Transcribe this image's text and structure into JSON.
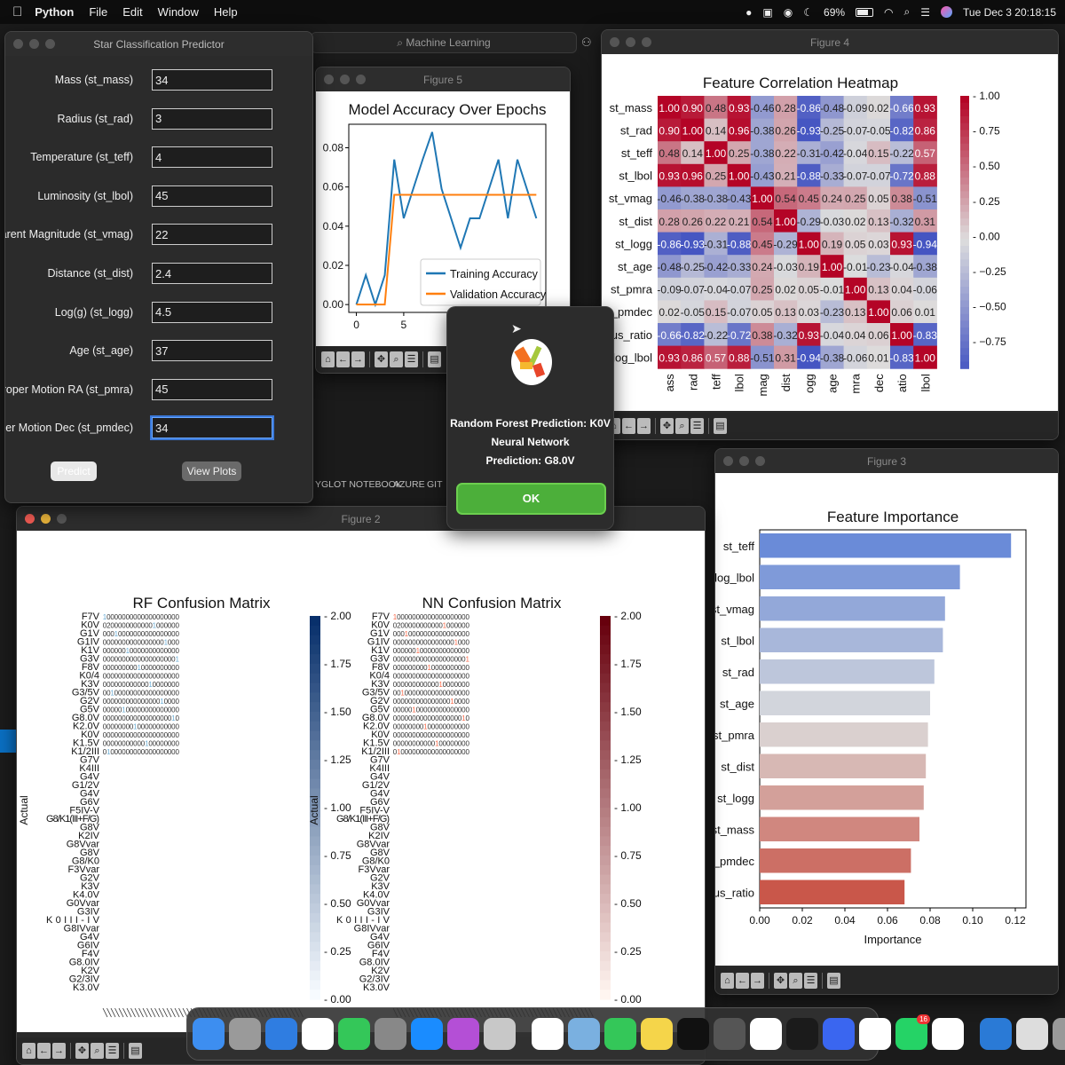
{
  "menubar": {
    "app": "Python",
    "items": [
      "File",
      "Edit",
      "Window",
      "Help"
    ],
    "battery": "69%",
    "clock": "Tue Dec 3  20:18:15"
  },
  "background": {
    "search": "Machine Learning",
    "panel_tabs": [
      "YGLOT NOTEBOOK",
      "AZURE",
      "GIT"
    ]
  },
  "predictor": {
    "title": "Star Classification Predictor",
    "fields": [
      {
        "label": "Mass (st_mass)",
        "value": "34"
      },
      {
        "label": "Radius (st_rad)",
        "value": "3"
      },
      {
        "label": "Temperature (st_teff)",
        "value": "4"
      },
      {
        "label": "Luminosity (st_lbol)",
        "value": "45"
      },
      {
        "label": "Apparent Magnitude (st_vmag)",
        "value": "22"
      },
      {
        "label": "Distance (st_dist)",
        "value": "2.4"
      },
      {
        "label": "Log(g) (st_logg)",
        "value": "4.5"
      },
      {
        "label": "Age (st_age)",
        "value": "37"
      },
      {
        "label": "Proper Motion RA (st_pmra)",
        "value": "45"
      },
      {
        "label": "Proper Motion Dec (st_pmdec)",
        "value": "34"
      }
    ],
    "predict_label": "Predict",
    "view_plots_label": "View Plots"
  },
  "dialog": {
    "line1": "Random Forest Prediction: K0V",
    "line2": "Neural Network",
    "line3": "Prediction: G8.0V",
    "ok_label": "OK",
    "accent": "#4caf3a"
  },
  "figure5": {
    "title": "Figure 5"
  },
  "figure4": {
    "title": "Figure 4"
  },
  "figure3": {
    "title": "Figure 3"
  },
  "figure2": {
    "title": "Figure 2"
  },
  "chart_data": [
    {
      "type": "line",
      "title": "Model Accuracy Over Epochs",
      "x": [
        0,
        1,
        2,
        3,
        4,
        5,
        6,
        7,
        8,
        9,
        10,
        11,
        12,
        13,
        14,
        15,
        16,
        17,
        18,
        19
      ],
      "xticks": [
        0,
        5
      ],
      "yticks": [
        "0.00",
        "0.02",
        "0.04",
        "0.06",
        "0.08"
      ],
      "ylim": [
        -0.004,
        0.092
      ],
      "xlim": [
        -0.8,
        20
      ],
      "series": [
        {
          "name": "Training Accuracy",
          "color": "#1f77b4",
          "values": [
            0,
            0.015,
            0,
            0.015,
            0.074,
            0.044,
            0.059,
            0.074,
            0.088,
            0.059,
            0.044,
            0.029,
            0.044,
            0.044,
            0.059,
            0.074,
            0.044,
            0.074,
            0.059,
            0.044
          ]
        },
        {
          "name": "Validation Accuracy",
          "color": "#ff7f0e",
          "values": [
            0,
            0,
            0,
            0,
            0.056,
            0.056,
            0.056,
            0.056,
            0.056,
            0.056,
            0.056,
            0.056,
            0.056,
            0.056,
            0.056,
            0.056,
            0.056,
            0.056,
            0.056,
            0.056
          ]
        }
      ],
      "legend": "lower-right"
    },
    {
      "type": "heatmap",
      "title": "Feature Correlation Heatmap",
      "colormap": "coolwarm",
      "labels": [
        "st_mass",
        "st_rad",
        "st_teff",
        "st_lbol",
        "st_vmag",
        "st_dist",
        "st_logg",
        "st_age",
        "st_pmra",
        "st_pmdec",
        "us_ratio",
        "log_lbol"
      ],
      "xlabels_visible": [
        "ass",
        "rad",
        "teff",
        "lbol",
        "mag",
        "dist",
        "ogg",
        "age",
        "mra",
        "dec",
        "atio",
        "lbol"
      ],
      "values": [
        [
          1.0,
          0.9,
          0.48,
          0.93,
          -0.46,
          0.28,
          -0.86,
          -0.48,
          -0.09,
          0.02,
          -0.66,
          0.93
        ],
        [
          0.9,
          1.0,
          0.14,
          0.96,
          -0.38,
          0.26,
          -0.93,
          -0.25,
          -0.07,
          -0.05,
          -0.82,
          0.86
        ],
        [
          0.48,
          0.14,
          1.0,
          0.25,
          -0.38,
          0.22,
          -0.31,
          -0.42,
          -0.04,
          0.15,
          -0.22,
          0.57
        ],
        [
          0.93,
          0.96,
          0.25,
          1.0,
          -0.43,
          0.21,
          -0.88,
          -0.33,
          -0.07,
          -0.07,
          -0.72,
          0.88
        ],
        [
          -0.46,
          -0.38,
          -0.38,
          -0.43,
          1.0,
          0.54,
          0.45,
          0.24,
          0.25,
          0.05,
          0.38,
          -0.51
        ],
        [
          0.28,
          0.26,
          0.22,
          0.21,
          0.54,
          1.0,
          -0.29,
          -0.03,
          0.02,
          0.13,
          -0.32,
          0.31
        ],
        [
          -0.86,
          -0.93,
          -0.31,
          -0.88,
          0.45,
          -0.29,
          1.0,
          0.19,
          0.05,
          0.03,
          0.93,
          -0.94
        ],
        [
          -0.48,
          -0.25,
          -0.42,
          -0.33,
          0.24,
          -0.03,
          0.19,
          1.0,
          -0.01,
          -0.23,
          -0.04,
          -0.38
        ],
        [
          -0.09,
          -0.07,
          -0.04,
          -0.07,
          0.25,
          0.02,
          0.05,
          -0.01,
          1.0,
          0.13,
          0.04,
          -0.06
        ],
        [
          0.02,
          -0.05,
          0.15,
          -0.07,
          0.05,
          0.13,
          0.03,
          -0.23,
          0.13,
          1.0,
          0.06,
          0.01
        ],
        [
          -0.66,
          -0.82,
          -0.22,
          -0.72,
          0.38,
          -0.32,
          0.93,
          -0.04,
          0.04,
          0.06,
          1.0,
          -0.83
        ],
        [
          0.93,
          0.86,
          0.57,
          0.88,
          -0.51,
          0.31,
          -0.94,
          -0.38,
          -0.06,
          0.01,
          -0.83,
          1.0
        ]
      ],
      "colorbar_ticks": [
        "1.00",
        "0.75",
        "0.50",
        "0.25",
        "0.00",
        "−0.25",
        "−0.50",
        "−0.75"
      ],
      "vlim": [
        -0.94,
        1.0
      ]
    },
    {
      "type": "bar",
      "orientation": "horizontal",
      "title": "Feature Importance",
      "xlabel": "Importance",
      "categories": [
        "st_teff",
        "log_lbol",
        "st_vmag",
        "st_lbol",
        "st_rad",
        "st_age",
        "st_pmra",
        "st_dist",
        "st_logg",
        "st_mass",
        "t_pmdec",
        "us_ratio"
      ],
      "values": [
        0.118,
        0.094,
        0.087,
        0.086,
        0.082,
        0.08,
        0.079,
        0.078,
        0.077,
        0.075,
        0.071,
        0.068
      ],
      "xticks": [
        "0.00",
        "0.02",
        "0.04",
        "0.06",
        "0.08",
        "0.10",
        "0.12"
      ],
      "xlim": [
        0,
        0.125
      ]
    },
    {
      "type": "heatmap",
      "title": "RF Confusion Matrix",
      "ylabel": "Actual",
      "colormap": "Blues",
      "vlim": [
        0,
        2
      ],
      "colorbar_ticks": [
        "2.00",
        "1.75",
        "1.50",
        "1.25",
        "1.00",
        "0.75",
        "0.50",
        "0.25",
        "0.00"
      ]
    },
    {
      "type": "heatmap",
      "title": "NN Confusion Matrix",
      "ylabel": "Actual",
      "colormap": "Reds",
      "vlim": [
        0,
        2
      ],
      "colorbar_ticks": [
        "2.00",
        "1.75",
        "1.50",
        "1.25",
        "1.00",
        "0.75",
        "0.50",
        "0.25",
        "0.00"
      ]
    }
  ],
  "confusion": {
    "row_labels": [
      "F7V",
      "K0V",
      "G1V",
      "G1IV",
      "K1V",
      "G3V",
      "F8V",
      "K0/4",
      "K3V",
      "G3/5V",
      "G2V",
      "G5V",
      "G8.0V",
      "K2.0V",
      "K0V",
      "K1.5V",
      "K1/2III",
      "G7V",
      "K4III",
      "G4V",
      "G1/2V",
      "G4V",
      "G6V",
      "F5IV-V",
      "G8/K1(III+F/G)",
      "G8V",
      "K2IV",
      "G8Vvar",
      "G8V",
      "G8/K0",
      "F3Vvar",
      "G2V",
      "K3V",
      "K4.0V",
      "G0Vvar",
      "G3IV",
      "K0III-IV",
      "G8IVvar",
      "G4V",
      "G6IV",
      "F4V",
      "G8.0IV",
      "K2V",
      "G2/3IV",
      "K3.0V"
    ]
  },
  "dock": {
    "apps": [
      "#3d8ef0",
      "#9a9a9a",
      "#2f7de1",
      "#ffffff",
      "#34c759",
      "#888888",
      "#1a8cff",
      "#b44fd6",
      "#c8c8c8",
      "#ffffff",
      "#7ab0e0",
      "#34c759",
      "#f5d54a",
      "#111111",
      "#555555",
      "#ffffff",
      "#1b1b1b",
      "#3a66f0",
      "#ffffff",
      "#25d366",
      "#ffffff",
      "#2a7ad6",
      "#dddddd",
      "#999999"
    ],
    "badge": "16"
  }
}
